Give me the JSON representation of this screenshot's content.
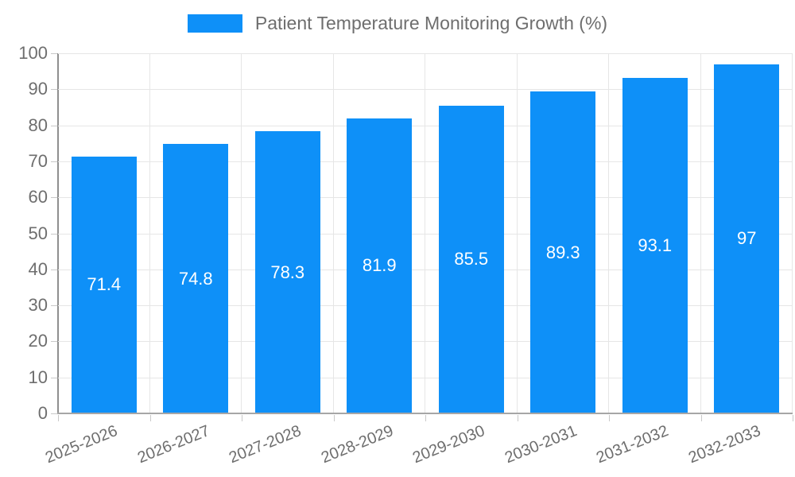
{
  "legend": {
    "label": "Patient Temperature Monitoring Growth (%)"
  },
  "chart_data": {
    "type": "bar",
    "title": "Patient Temperature Monitoring Growth (%)",
    "categories": [
      "2025-2026",
      "2026-2027",
      "2027-2028",
      "2028-2029",
      "2029-2030",
      "2030-2031",
      "2031-2032",
      "2032-2033"
    ],
    "values": [
      71.4,
      74.8,
      78.3,
      81.9,
      85.5,
      89.3,
      93.1,
      97
    ],
    "value_labels": [
      "71.4",
      "74.8",
      "78.3",
      "81.9",
      "85.5",
      "89.3",
      "93.1",
      "97"
    ],
    "xlabel": "",
    "ylabel": "",
    "ylim": [
      0,
      100
    ],
    "yticks": [
      0,
      10,
      20,
      30,
      40,
      50,
      60,
      70,
      80,
      90,
      100
    ],
    "grid": true,
    "legend_position": "top",
    "colors": {
      "bar": "#0e90f8",
      "grid_line": "#e6e6e6",
      "axis_line": "#8f8f8f",
      "baseline": "#a6a6a6",
      "tick": "#c9c9c9",
      "axis_text": "#6e6e6e",
      "bar_value_text": "#ffffff"
    }
  }
}
